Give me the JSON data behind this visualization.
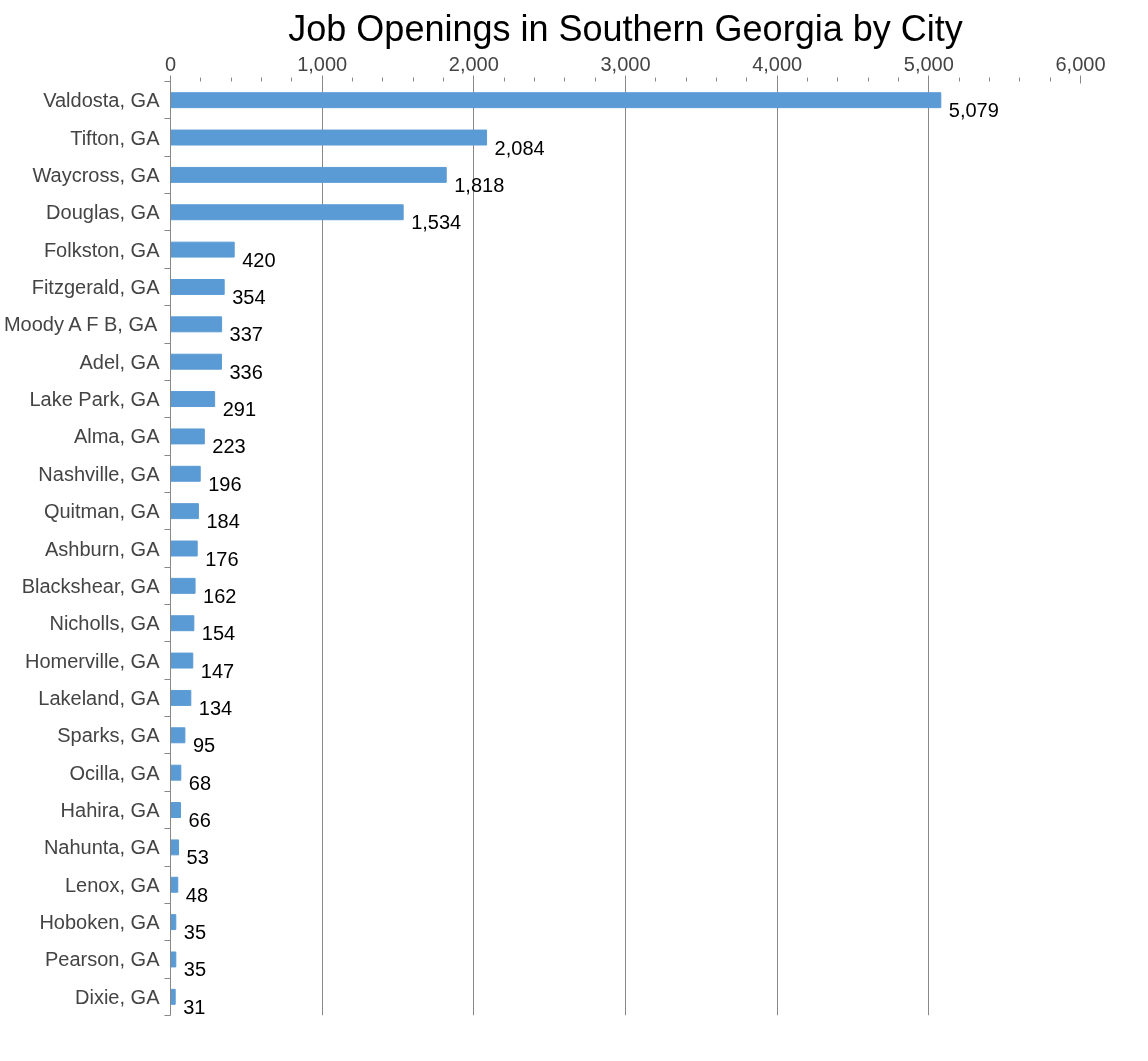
{
  "chart_data": {
    "type": "bar",
    "orientation": "horizontal",
    "title": "Job Openings in Southern Georgia by City",
    "categories": [
      "Valdosta, GA",
      "Tifton, GA",
      "Waycross, GA",
      "Douglas, GA",
      "Folkston, GA",
      "Fitzgerald, GA",
      "Moody A F B, GA",
      "Adel, GA",
      "Lake Park, GA",
      "Alma, GA",
      "Nashville, GA",
      "Quitman, GA",
      "Ashburn, GA",
      "Blackshear, GA",
      "Nicholls, GA",
      "Homerville, GA",
      "Lakeland, GA",
      "Sparks, GA",
      "Ocilla, GA",
      "Hahira, GA",
      "Nahunta, GA",
      "Lenox, GA",
      "Hoboken, GA",
      "Pearson, GA",
      "Dixie, GA"
    ],
    "values": [
      5079,
      2084,
      1818,
      1534,
      420,
      354,
      337,
      336,
      291,
      223,
      196,
      184,
      176,
      162,
      154,
      147,
      134,
      95,
      68,
      66,
      53,
      48,
      35,
      35,
      31
    ],
    "color": "#5b9bd5",
    "xlim": [
      0,
      6000
    ],
    "xticks": [
      {
        "value": 0,
        "label": "0"
      },
      {
        "value": 1000,
        "label": "1,000"
      },
      {
        "value": 2000,
        "label": "2,000"
      },
      {
        "value": 3000,
        "label": "3,000"
      },
      {
        "value": 4000,
        "label": "4,000"
      },
      {
        "value": 5000,
        "label": "5,000"
      },
      {
        "value": 6000,
        "label": "6,000"
      }
    ],
    "value_labels": [
      "5,079",
      "2,084",
      "1,818",
      "1,534",
      "420",
      "354",
      "337",
      "336",
      "291",
      "223",
      "196",
      "184",
      "176",
      "162",
      "154",
      "147",
      "134",
      "95",
      "68",
      "66",
      "53",
      "48",
      "35",
      "35",
      "31"
    ],
    "grid": "x"
  }
}
